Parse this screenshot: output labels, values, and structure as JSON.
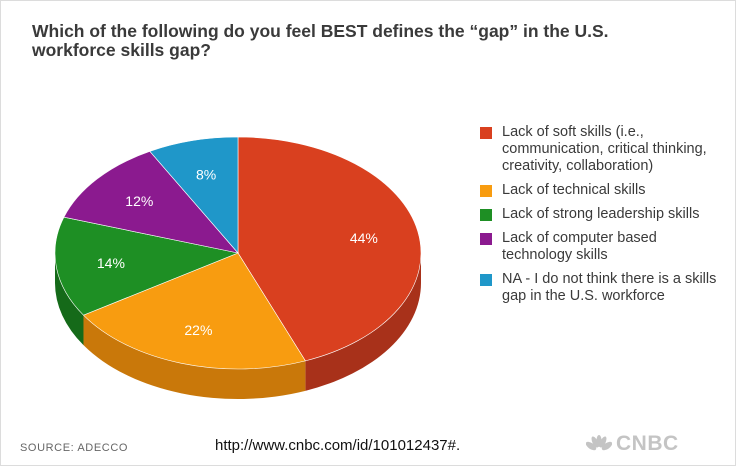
{
  "title": "Which of the following do you feel BEST defines the “gap” in the U.S. workforce skills gap?",
  "source": "SOURCE: ADECCO",
  "url": "http://www.cnbc.com/id/101012437#.",
  "logo_text": "CNBC",
  "chart_data": {
    "type": "pie",
    "title": "Which of the following do you feel BEST defines the “gap” in the U.S. workforce skills gap?",
    "unit": "%",
    "style": "3d",
    "legend_position": "right",
    "slices": [
      {
        "label": "Lack of soft skills (i.e., communication, critical thinking, creativity, collaboration)",
        "value": 44,
        "display": "44%",
        "color": "#d9401f",
        "side_color": "#a8311a"
      },
      {
        "label": "Lack of technical skills",
        "value": 22,
        "display": "22%",
        "color": "#f89c10",
        "side_color": "#c9780a"
      },
      {
        "label": "Lack of strong leadership skills",
        "value": 14,
        "display": "14%",
        "color": "#1e8f24",
        "side_color": "#156a19"
      },
      {
        "label": "Lack of computer based technology skills",
        "value": 12,
        "display": "12%",
        "color": "#8b1a8f",
        "side_color": "#65126a"
      },
      {
        "label": "NA - I do not think there is a skills gap in the U.S. workforce",
        "value": 8,
        "display": "8%",
        "color": "#1f97c9",
        "side_color": "#17739a"
      }
    ]
  }
}
